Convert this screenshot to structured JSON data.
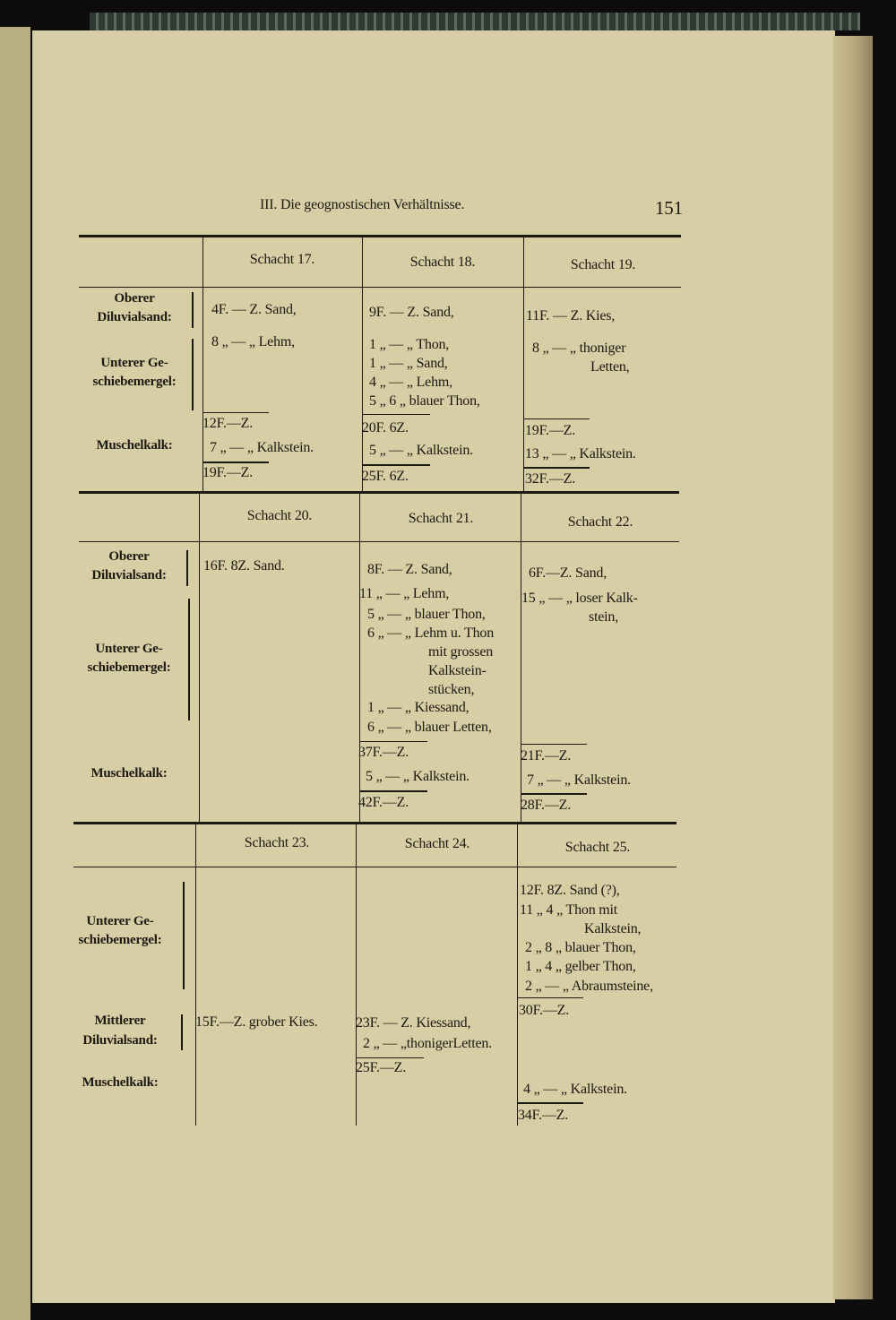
{
  "running_head": {
    "title": "III. Die geognostischen Verhältnisse.",
    "page_number": "151"
  },
  "blocks": [
    {
      "headers": [
        "Schacht 17.",
        "Schacht 18.",
        "Schacht 19."
      ],
      "labels": [
        "Oberer",
        "Diluvialsand:",
        "Unterer Ge-",
        "schiebemergel:",
        "Muschelkalk:"
      ],
      "cells": [
        [
          "4F. — Z. Sand,",
          "8 „ — „ Lehm,",
          "12F.—Z.",
          "7 „ — „ Kalkstein.",
          "19F.—Z."
        ],
        [
          "9F. — Z. Sand,",
          "1 „ — „ Thon,",
          "1 „ — „ Sand,",
          "4 „ — „ Lehm,",
          "5 „  6 „ blauer Thon,",
          "20F. 6Z.",
          "5 „ — „ Kalkstein.",
          "25F. 6Z."
        ],
        [
          "11F. — Z. Kies,",
          "8 „ — „ thoniger",
          "Letten,",
          "19F.—Z.",
          "13 „ — „ Kalkstein.",
          "32F.—Z."
        ]
      ]
    },
    {
      "headers": [
        "Schacht 20.",
        "Schacht 21.",
        "Schacht 22."
      ],
      "labels": [
        "Oberer",
        "Diluvialsand:",
        "Unterer Ge-",
        "schiebemergel:",
        "Muschelkalk:"
      ],
      "cells": [
        [
          "16F.  8Z. Sand."
        ],
        [
          "8F. — Z. Sand,",
          "11 „ — „ Lehm,",
          "5 „ — „ blauer Thon,",
          "6 „ — „ Lehm u. Thon",
          "mit   grossen",
          "Kalkstein-",
          "stücken,",
          "1 „ — „ Kiessand,",
          "6 „ — „ blauer Letten,",
          "37F.—Z.",
          "5 „ — „ Kalkstein.",
          "42F.—Z."
        ],
        [
          "6F.—Z. Sand,",
          "15 „ — „ loser   Kalk-",
          "stein,",
          "21F.—Z.",
          "7 „ — „ Kalkstein.",
          "28F.—Z."
        ]
      ]
    },
    {
      "headers": [
        "Schacht 23.",
        "Schacht 24.",
        "Schacht 25."
      ],
      "labels": [
        "Unterer Ge-",
        "schiebemergel:",
        "Mittlerer",
        "Diluvialsand:",
        "Muschelkalk:"
      ],
      "cells": [
        [
          "15F.—Z. grober Kies."
        ],
        [
          "23F. — Z. Kiessand,",
          "2 „ — „thonigerLetten.",
          "25F.—Z."
        ],
        [
          "12F.  8Z. Sand (?),",
          "11 „  4 „ Thon   mit",
          "Kalkstein,",
          "2 „  8 „ blauer Thon,",
          "1 „  4 „ gelber Thon,",
          "2 „ — „ Abraumsteine,",
          "30F.—Z.",
          "4 „ — „ Kalkstein.",
          "34F.—Z."
        ]
      ]
    }
  ]
}
